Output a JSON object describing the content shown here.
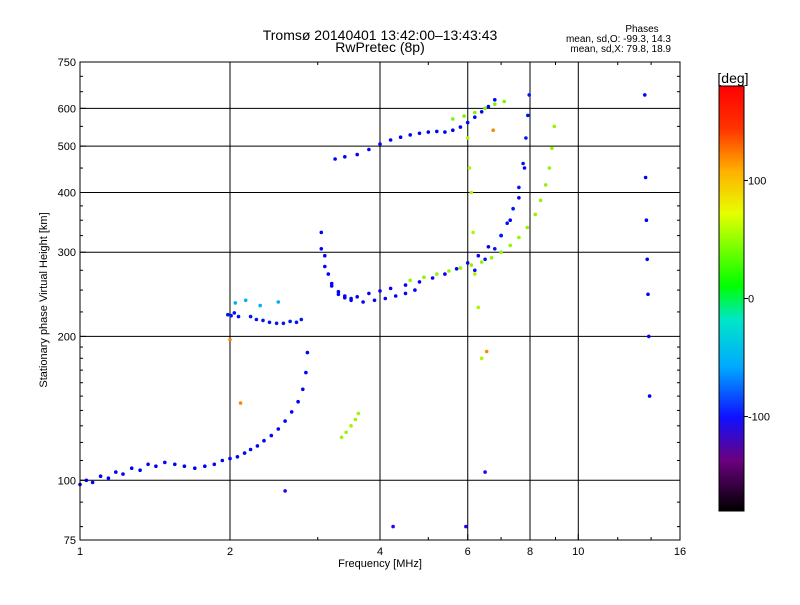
{
  "header": {
    "title_line1": "Tromsø 20140401 13:42:00–13:43:43",
    "title_line2": "RwPretec (8p)"
  },
  "phases": {
    "title": "Phases",
    "line1": "mean, sd,O: -99.3, 14.3",
    "line2": "mean, sd,X:  79.8, 18.9"
  },
  "colorbar": {
    "label": "[deg]",
    "range": [
      -180,
      180
    ],
    "ticks": [
      {
        "value": 100,
        "label": "100"
      },
      {
        "value": 0,
        "label": "0"
      },
      {
        "value": -100,
        "label": "-100"
      }
    ]
  },
  "colors": {
    "frame": "#000000",
    "grid": "#000000"
  },
  "chart_data": {
    "type": "scatter",
    "xlabel": "Frequency [MHz]",
    "ylabel": "Stationary phase Virtual Height [km]",
    "xscale": "log",
    "yscale": "log",
    "xlim": [
      1,
      16
    ],
    "ylim": [
      75,
      750
    ],
    "xticks": [
      {
        "value": 1,
        "label": "1"
      },
      {
        "value": 2,
        "label": "2"
      },
      {
        "value": 4,
        "label": "4"
      },
      {
        "value": 6,
        "label": "6"
      },
      {
        "value": 8,
        "label": "8"
      },
      {
        "value": 10,
        "label": "10"
      },
      {
        "value": 16,
        "label": "16"
      }
    ],
    "yticks": [
      {
        "value": 75,
        "label": "75"
      },
      {
        "value": 100,
        "label": "100"
      },
      {
        "value": 200,
        "label": "200"
      },
      {
        "value": 300,
        "label": "300"
      },
      {
        "value": 400,
        "label": "400"
      },
      {
        "value": 500,
        "label": "500"
      },
      {
        "value": 600,
        "label": "600"
      },
      {
        "value": 750,
        "label": "750"
      }
    ],
    "grid": true,
    "color_scale": "phase (deg)",
    "series": [
      {
        "phase": -100,
        "x": [
          1.0,
          1.03,
          1.06,
          1.1,
          1.14,
          1.18,
          1.22,
          1.27,
          1.32,
          1.37,
          1.42,
          1.48,
          1.55,
          1.62,
          1.7,
          1.78,
          1.86,
          1.93,
          2.0,
          2.07,
          2.14,
          2.2,
          2.27,
          2.34,
          2.42,
          2.5,
          2.58,
          2.66,
          2.74,
          2.8,
          2.84,
          2.86
        ],
        "y": [
          98,
          100,
          99,
          102,
          101,
          104,
          103,
          106,
          105,
          108,
          107,
          109,
          108,
          107,
          106,
          107,
          108,
          110,
          111,
          112,
          114,
          116,
          118,
          121,
          124,
          128,
          133,
          139,
          146,
          155,
          168,
          185
        ]
      },
      {
        "phase": -95,
        "x": [
          1.98,
          2.01,
          2.04,
          2.08,
          2.2,
          2.26,
          2.33,
          2.4,
          2.48,
          2.56,
          2.64,
          2.72,
          2.78
        ],
        "y": [
          222,
          221,
          224,
          220,
          220,
          217,
          216,
          214,
          213,
          213,
          215,
          214,
          217
        ]
      },
      {
        "phase": -105,
        "x": [
          3.05,
          3.1,
          3.15,
          3.2,
          3.3,
          3.4,
          3.5,
          3.6,
          3.8,
          4.0,
          4.2,
          4.5,
          4.8,
          5.1,
          5.4,
          5.7,
          6.0,
          6.3,
          6.6,
          7.0,
          7.3,
          7.6,
          7.8
        ],
        "y": [
          330,
          295,
          270,
          255,
          245,
          241,
          240,
          242,
          246,
          249,
          252,
          256,
          260,
          265,
          270,
          277,
          285,
          295,
          308,
          325,
          350,
          390,
          450
        ]
      },
      {
        "phase": -100,
        "x": [
          3.05,
          3.1,
          3.2,
          3.3,
          3.4,
          3.5,
          3.7,
          3.9,
          4.1,
          4.3,
          4.5,
          4.7
        ],
        "y": [
          305,
          280,
          258,
          248,
          243,
          238,
          236,
          238,
          240,
          243,
          246,
          250
        ]
      },
      {
        "phase": -95,
        "x": [
          6.2,
          6.5,
          6.8,
          7.0,
          7.2,
          7.4,
          7.6,
          7.75,
          7.85,
          7.92,
          7.97
        ],
        "y": [
          275,
          290,
          305,
          325,
          345,
          370,
          410,
          460,
          520,
          580,
          640
        ]
      },
      {
        "phase": -100,
        "x": [
          3.25,
          3.4,
          3.6,
          3.8,
          4.0,
          4.2,
          4.4,
          4.6,
          4.8,
          5.0,
          5.2,
          5.4,
          5.6,
          5.8,
          6.0,
          6.2,
          6.4,
          6.6,
          6.8
        ],
        "y": [
          470,
          475,
          480,
          492,
          505,
          515,
          522,
          528,
          532,
          535,
          537,
          535,
          540,
          548,
          560,
          575,
          590,
          605,
          625
        ]
      },
      {
        "phase": 80,
        "x": [
          4.6,
          4.9,
          5.2,
          5.5,
          5.8,
          6.1,
          6.4,
          6.7,
          7.0,
          7.3,
          7.6,
          7.9,
          8.2,
          8.4,
          8.6,
          8.75,
          8.85,
          8.95
        ],
        "y": [
          262,
          266,
          270,
          274,
          278,
          282,
          286,
          292,
          300,
          310,
          322,
          338,
          360,
          385,
          415,
          450,
          495,
          550
        ]
      },
      {
        "phase": 85,
        "x": [
          3.35,
          3.42,
          3.5,
          3.57,
          3.62
        ],
        "y": [
          123,
          126,
          130,
          134,
          138
        ]
      },
      {
        "phase": 75,
        "x": [
          5.6,
          5.9,
          6.2,
          6.5,
          6.8,
          7.1
        ],
        "y": [
          570,
          578,
          588,
          600,
          612,
          620
        ]
      },
      {
        "phase": -100,
        "x": [
          13.6,
          13.65,
          13.7,
          13.75,
          13.8,
          13.85,
          13.9
        ],
        "y": [
          640,
          430,
          350,
          290,
          245,
          200,
          150
        ]
      },
      {
        "phase": 90,
        "x": [
          6.0,
          6.05,
          6.1,
          6.15,
          6.2,
          6.3,
          6.4
        ],
        "y": [
          520,
          450,
          400,
          330,
          270,
          230,
          180
        ]
      },
      {
        "phase": -50,
        "x": [
          2.05,
          2.15,
          2.3,
          2.5
        ],
        "y": [
          235,
          238,
          232,
          236
        ]
      },
      {
        "phase": 140,
        "x": [
          2.0,
          2.1,
          6.55,
          6.75
        ],
        "y": [
          197,
          145,
          186,
          540
        ]
      },
      {
        "phase": -120,
        "x": [
          4.25,
          5.95,
          6.5,
          2.58
        ],
        "y": [
          80,
          80,
          104,
          95
        ]
      }
    ]
  }
}
